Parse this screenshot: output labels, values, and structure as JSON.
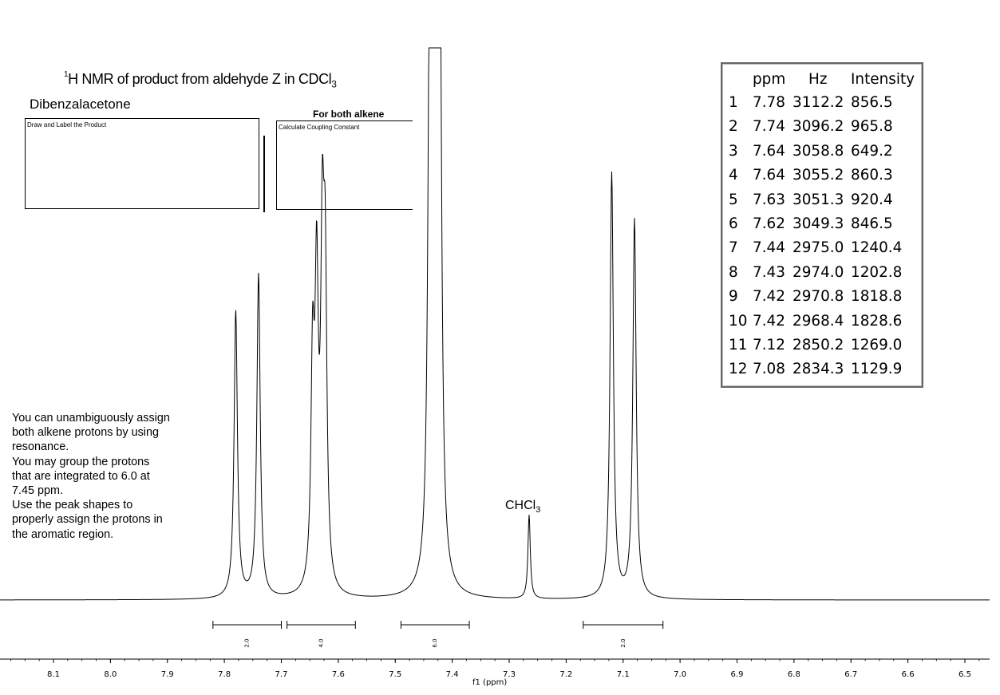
{
  "header": {
    "title_main": "H NMR of product from aldehyde Z in CDCl",
    "title_superscript": "1",
    "title_subscript": "3",
    "subtitle": "Dibenzalacetone"
  },
  "boxes": {
    "draw_label": "Draw and Label the Product",
    "both_alkene_label": "For both alkene",
    "calc_label": "Calculate Coupling Constant"
  },
  "notes": [
    "You can unambiguously assign",
    "both alkene protons by using",
    "resonance.",
    "You may group the protons",
    "that are integrated to 6.0 at",
    "7.45 ppm.",
    "Use the peak shapes to",
    "properly assign the protons in",
    "the aromatic region."
  ],
  "peak_table": {
    "headers": [
      "ppm",
      "Hz",
      "Intensity"
    ],
    "rows": [
      {
        "n": "1",
        "ppm": "7.78",
        "hz": "3112.2",
        "intensity": "856.5"
      },
      {
        "n": "2",
        "ppm": "7.74",
        "hz": "3096.2",
        "intensity": "965.8"
      },
      {
        "n": "3",
        "ppm": "7.64",
        "hz": "3058.8",
        "intensity": "649.2"
      },
      {
        "n": "4",
        "ppm": "7.64",
        "hz": "3055.2",
        "intensity": "860.3"
      },
      {
        "n": "5",
        "ppm": "7.63",
        "hz": "3051.3",
        "intensity": "920.4"
      },
      {
        "n": "6",
        "ppm": "7.62",
        "hz": "3049.3",
        "intensity": "846.5"
      },
      {
        "n": "7",
        "ppm": "7.44",
        "hz": "2975.0",
        "intensity": "1240.4"
      },
      {
        "n": "8",
        "ppm": "7.43",
        "hz": "2974.0",
        "intensity": "1202.8"
      },
      {
        "n": "9",
        "ppm": "7.42",
        "hz": "2970.8",
        "intensity": "1818.8"
      },
      {
        "n": "10",
        "ppm": "7.42",
        "hz": "2968.4",
        "intensity": "1828.6"
      },
      {
        "n": "11",
        "ppm": "7.12",
        "hz": "2850.2",
        "intensity": "1269.0"
      },
      {
        "n": "12",
        "ppm": "7.08",
        "hz": "2834.3",
        "intensity": "1129.9"
      }
    ]
  },
  "annotations": {
    "solvent_main": "CHCl",
    "solvent_subscript": "3"
  },
  "chart_data": {
    "type": "line",
    "xlabel": "f1 (ppm)",
    "ylabel": "",
    "xlim": [
      8.2,
      6.5
    ],
    "x_reversed": true,
    "x_ticks": [
      "8.1",
      "8.0",
      "7.9",
      "7.8",
      "7.7",
      "7.6",
      "7.5",
      "7.4",
      "7.3",
      "7.2",
      "7.1",
      "7.0",
      "6.9",
      "6.8",
      "6.7",
      "6.6",
      "6.5"
    ],
    "x_tick_values": [
      8.1,
      8.0,
      7.9,
      7.8,
      7.7,
      7.6,
      7.5,
      7.4,
      7.3,
      7.2,
      7.1,
      7.0,
      6.9,
      6.8,
      6.7,
      6.6,
      6.5
    ],
    "peaks": [
      {
        "ppm": 7.78,
        "intensity": 856.5,
        "width": 0.0035
      },
      {
        "ppm": 7.74,
        "intensity": 965.8,
        "width": 0.0035
      },
      {
        "ppm": 7.645,
        "intensity": 649.2,
        "width": 0.0035
      },
      {
        "ppm": 7.638,
        "intensity": 860.3,
        "width": 0.0035
      },
      {
        "ppm": 7.628,
        "intensity": 920.4,
        "width": 0.0035
      },
      {
        "ppm": 7.623,
        "intensity": 846.5,
        "width": 0.0035
      },
      {
        "ppm": 7.44,
        "intensity": 1240.4,
        "width": 0.0035
      },
      {
        "ppm": 7.436,
        "intensity": 1202.8,
        "width": 0.0035
      },
      {
        "ppm": 7.428,
        "intensity": 1818.8,
        "width": 0.0035
      },
      {
        "ppm": 7.422,
        "intensity": 1828.6,
        "width": 0.0035
      },
      {
        "ppm": 7.265,
        "intensity": 250,
        "width": 0.0025
      },
      {
        "ppm": 7.12,
        "intensity": 1269.0,
        "width": 0.0035
      },
      {
        "ppm": 7.08,
        "intensity": 1129.9,
        "width": 0.0035
      }
    ],
    "integrals": [
      {
        "from": 7.82,
        "to": 7.7,
        "label": "2.0"
      },
      {
        "from": 7.69,
        "to": 7.57,
        "label": "4.0"
      },
      {
        "from": 7.49,
        "to": 7.37,
        "label": "6.0"
      },
      {
        "from": 7.17,
        "to": 7.03,
        "label": "2.0"
      }
    ],
    "grid": false,
    "legend": "none"
  }
}
